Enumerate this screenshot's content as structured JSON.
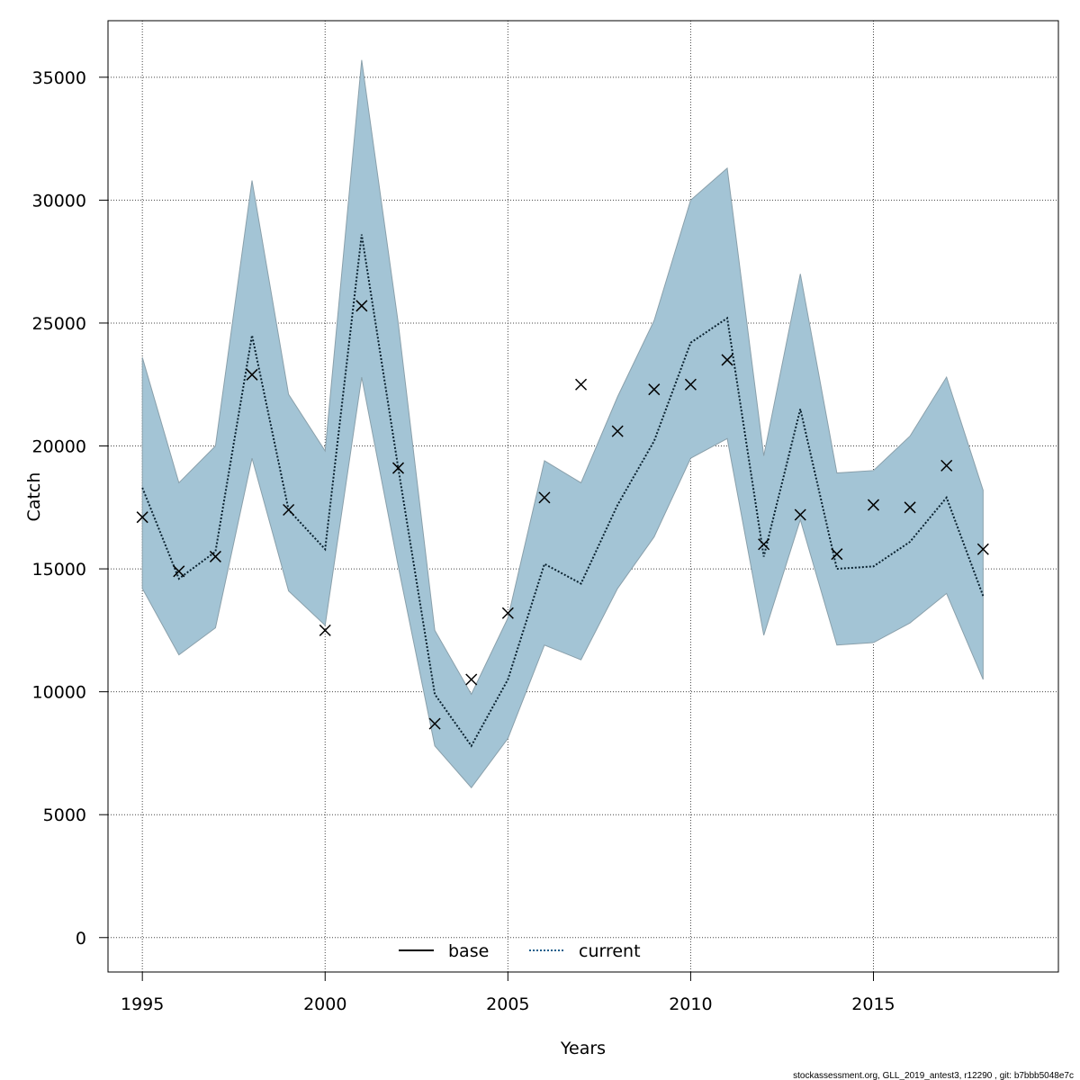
{
  "chart_data": {
    "type": "line",
    "title": "",
    "xlabel": "Years",
    "ylabel": "Catch",
    "xlim": [
      1994.06,
      2020.06
    ],
    "ylim": [
      -1400,
      37300
    ],
    "grid": true,
    "xticks": [
      1995,
      2000,
      2005,
      2010,
      2015
    ],
    "yticks": [
      0,
      5000,
      10000,
      15000,
      20000,
      25000,
      30000,
      35000
    ],
    "x": [
      1995,
      1996,
      1997,
      1998,
      1999,
      2000,
      2001,
      2002,
      2003,
      2004,
      2005,
      2006,
      2007,
      2008,
      2009,
      2010,
      2011,
      2012,
      2013,
      2014,
      2015,
      2016,
      2017,
      2018
    ],
    "series": [
      {
        "name": "current",
        "style": "dotted",
        "color": "#000000",
        "values": [
          18300,
          14600,
          15700,
          24500,
          17400,
          15800,
          28600,
          19100,
          9900,
          7800,
          10500,
          15200,
          14400,
          17600,
          20200,
          24200,
          25200,
          15500,
          21500,
          15000,
          15100,
          16100,
          17900,
          13900
        ]
      }
    ],
    "band": {
      "name": "confidence interval",
      "color": "#a3c4d5",
      "lower": [
        14200,
        11500,
        12600,
        19500,
        14100,
        12700,
        22800,
        15100,
        7800,
        6100,
        8100,
        11900,
        11300,
        14200,
        16300,
        19500,
        20300,
        12300,
        17000,
        11900,
        12000,
        12800,
        14000,
        10500
      ],
      "upper": [
        23600,
        18500,
        20000,
        30800,
        22100,
        19800,
        35700,
        25000,
        12500,
        9900,
        13000,
        19400,
        18500,
        22000,
        25100,
        30000,
        31300,
        19600,
        27000,
        18900,
        19000,
        20400,
        22800,
        18200
      ]
    },
    "observed": {
      "name": "observed",
      "marker": "x",
      "values": [
        17100,
        14900,
        15500,
        22900,
        17400,
        12500,
        25700,
        19100,
        8700,
        10500,
        13200,
        17900,
        22500,
        20600,
        22300,
        22500,
        23500,
        16000,
        17200,
        15600,
        17600,
        17500,
        19200,
        15800
      ]
    },
    "legend": {
      "position": "bottom-center",
      "entries": [
        {
          "label": "base",
          "style": "solid",
          "color": "#000000"
        },
        {
          "label": "current",
          "style": "dotted",
          "color": "#1f5f8b"
        }
      ]
    },
    "footer": "stockassessment.org, GLL_2019_antest3, r12290 , git: b7bbb5048e7c"
  }
}
